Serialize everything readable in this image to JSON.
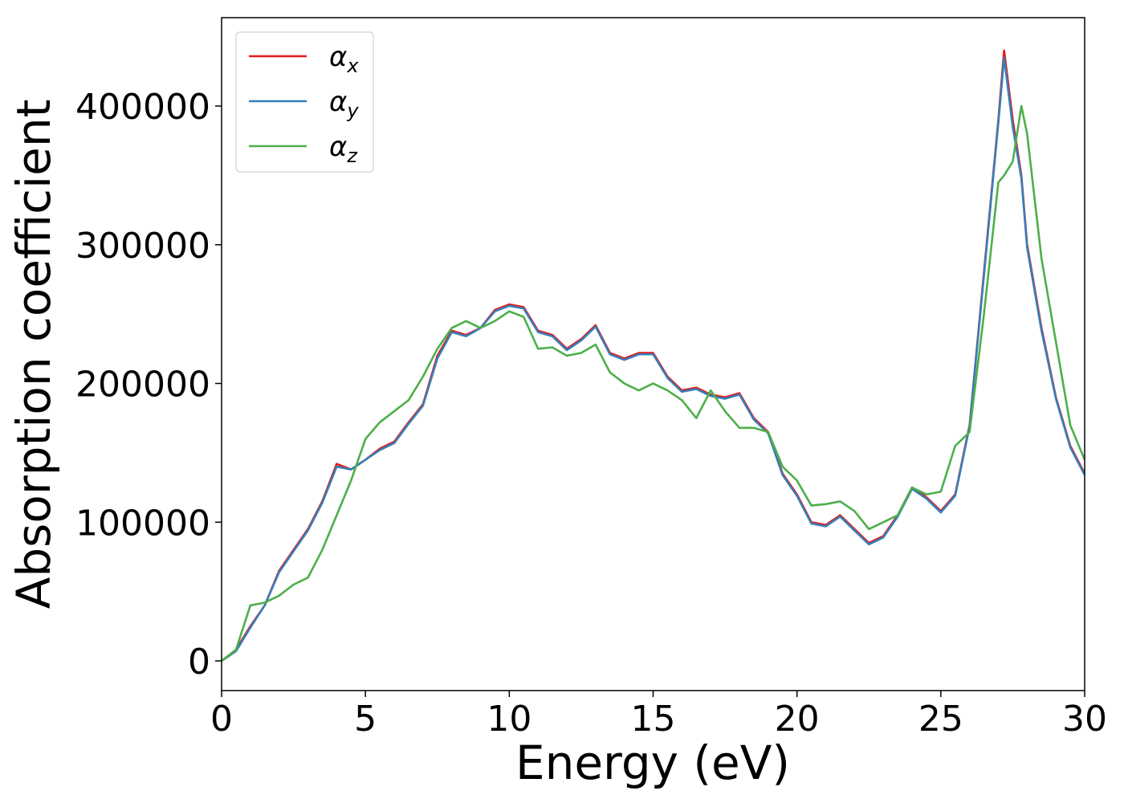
{
  "chart_data": {
    "type": "line",
    "x_label": "Energy (eV)",
    "y_label": "Absorption coefficient",
    "x": [
      0,
      0.5,
      1,
      1.5,
      2,
      2.5,
      3,
      3.5,
      4,
      4.5,
      5,
      5.5,
      6,
      6.5,
      7,
      7.5,
      8,
      8.5,
      9,
      9.5,
      10,
      10.5,
      11,
      11.5,
      12,
      12.5,
      13,
      13.5,
      14,
      14.5,
      15,
      15.5,
      16,
      16.5,
      17,
      17.5,
      18,
      18.5,
      19,
      19.5,
      20,
      20.5,
      21,
      21.5,
      22,
      22.5,
      23,
      23.5,
      24,
      24.5,
      25,
      25.5,
      26,
      26.5,
      27,
      27.2,
      27.5,
      27.8,
      28,
      28.5,
      29,
      29.5,
      30
    ],
    "series": [
      {
        "name": "αx",
        "color": "#e41a1c",
        "values": [
          0,
          8000,
          25000,
          40000,
          65000,
          80000,
          95000,
          115000,
          142000,
          138000,
          145000,
          153000,
          158000,
          172000,
          185000,
          220000,
          238000,
          235000,
          240000,
          253000,
          257000,
          255000,
          238000,
          235000,
          225000,
          232000,
          242000,
          222000,
          218000,
          222000,
          222000,
          205000,
          195000,
          197000,
          192000,
          190000,
          193000,
          175000,
          165000,
          135000,
          120000,
          100000,
          98000,
          105000,
          95000,
          85000,
          90000,
          105000,
          125000,
          118000,
          108000,
          120000,
          170000,
          280000,
          390000,
          440000,
          390000,
          350000,
          300000,
          240000,
          190000,
          155000,
          135000
        ]
      },
      {
        "name": "αy",
        "color": "#377eb8",
        "values": [
          0,
          7000,
          24000,
          40000,
          64000,
          79000,
          94000,
          114000,
          140000,
          138000,
          145000,
          152000,
          157000,
          171000,
          184000,
          218000,
          237000,
          234000,
          240000,
          252000,
          256000,
          254000,
          237000,
          234000,
          224000,
          231000,
          241000,
          221000,
          217000,
          221000,
          221000,
          204000,
          194000,
          196000,
          191000,
          189000,
          192000,
          174000,
          164000,
          134000,
          119000,
          99000,
          97000,
          104000,
          94000,
          84000,
          89000,
          104000,
          124000,
          117000,
          107000,
          119000,
          169000,
          278000,
          388000,
          435000,
          385000,
          348000,
          298000,
          238000,
          189000,
          154000,
          134000
        ]
      },
      {
        "name": "αz",
        "color": "#4daf4a",
        "values": [
          0,
          8000,
          40000,
          42000,
          47000,
          55000,
          60000,
          80000,
          105000,
          130000,
          160000,
          172000,
          180000,
          188000,
          205000,
          225000,
          240000,
          245000,
          240000,
          245000,
          252000,
          248000,
          225000,
          226000,
          220000,
          222000,
          228000,
          208000,
          200000,
          195000,
          200000,
          195000,
          188000,
          175000,
          195000,
          180000,
          168000,
          168000,
          165000,
          140000,
          130000,
          112000,
          113000,
          115000,
          108000,
          95000,
          100000,
          105000,
          125000,
          120000,
          122000,
          155000,
          165000,
          250000,
          345000,
          350000,
          360000,
          400000,
          380000,
          290000,
          230000,
          170000,
          145000
        ]
      }
    ],
    "xlim": [
      0,
      30
    ],
    "xticks": [
      0,
      5,
      10,
      15,
      20,
      25,
      30
    ],
    "ylim": [
      -21400,
      463700
    ],
    "yticks": [
      0,
      100000,
      200000,
      300000,
      400000
    ],
    "legend": "upper left"
  }
}
